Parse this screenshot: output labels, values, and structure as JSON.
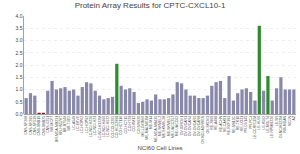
{
  "chart_data": {
    "type": "bar",
    "title": "Protein Array Results for CPTC-CXCL10-1",
    "xlabel": "NCI60 Cell Lines",
    "categories": [
      "CNS-SF268",
      "CNS-SF295",
      "CNS-SF539",
      "CNS-SNB19",
      "CNS-SNB75",
      "CNS-U251",
      "BR-MCF7",
      "BR-MDA-MB231",
      "BR-HS578T",
      "BR-BT549",
      "BR-T47D",
      "LC-A549",
      "LC-EKVX",
      "LC-HOP62",
      "LC-HOP92",
      "LC-NCI-H226",
      "LC-NCI-H23",
      "LC-NCI-H322M",
      "LC-NCI-H460",
      "LC-NCI-H522",
      "CO-COLO205",
      "CO-HCC2998",
      "CO-HCT116",
      "CO-HCT15",
      "CO-HT29",
      "CO-KM12",
      "CO-SW620",
      "ME-LOXIMVI",
      "ME-MALME3M",
      "ME-M14",
      "ME-MDA-MB435",
      "ME-SKMEL2",
      "ME-SKMEL28",
      "ME-SKMEL5",
      "ME-UACC257",
      "ME-UACC62",
      "OV-IGROV1",
      "OV-OVCAR3",
      "OV-OVCAR4",
      "OV-OVCAR5",
      "OV-OVCAR8",
      "OV-NCI-ADRRES",
      "OV-SKOV3",
      "RE-7860",
      "RE-A498",
      "RE-ACHN",
      "RE-CAKI1",
      "RE-RXF393",
      "RE-SN12C",
      "RE-TK10",
      "RE-UO31",
      "PR-DU145",
      "PR-PC3",
      "LE-CCRFCEM",
      "LE-HL60",
      "LE-K562",
      "LE-MOLT4",
      "LE-RPMI8226",
      "LE-SR",
      "GI-NCIH322M",
      "WB-MDAN",
      "NCI-N",
      "AZ"
    ],
    "values": [
      0.65,
      0.85,
      0.75,
      0.05,
      0.05,
      0.95,
      1.35,
      1.0,
      1.05,
      1.1,
      0.95,
      1.0,
      0.75,
      1.1,
      1.3,
      1.25,
      0.95,
      0.75,
      0.6,
      0.65,
      0.7,
      2.05,
      1.15,
      1.0,
      1.05,
      0.9,
      0.45,
      0.5,
      0.6,
      0.55,
      0.8,
      0.6,
      0.6,
      0.65,
      0.8,
      1.3,
      1.25,
      1.0,
      0.75,
      0.75,
      0.65,
      0.65,
      0.75,
      1.15,
      1.3,
      1.35,
      0.65,
      1.55,
      0.55,
      0.85,
      1.0,
      1.05,
      0.9,
      0.55,
      3.6,
      0.95,
      1.55,
      0.55,
      1.05,
      1.5,
      1.0,
      1.0,
      1.0
    ],
    "colors": [
      "#8888aa",
      "#8888aa",
      "#8888aa",
      "#8B1A1A",
      "#8B1A1A",
      "#8888aa",
      "#8888aa",
      "#8888aa",
      "#8888aa",
      "#8888aa",
      "#8888aa",
      "#8888aa",
      "#8888aa",
      "#8888aa",
      "#8888aa",
      "#8888aa",
      "#8888aa",
      "#8888aa",
      "#8888aa",
      "#8888aa",
      "#8888aa",
      "#2e8b2e",
      "#8888aa",
      "#8888aa",
      "#8888aa",
      "#8888aa",
      "#8888aa",
      "#8888aa",
      "#8888aa",
      "#8888aa",
      "#8888aa",
      "#8888aa",
      "#8888aa",
      "#8888aa",
      "#8888aa",
      "#8888aa",
      "#8888aa",
      "#8888aa",
      "#8888aa",
      "#8888aa",
      "#8888aa",
      "#8888aa",
      "#8888aa",
      "#8888aa",
      "#8888aa",
      "#8888aa",
      "#8888aa",
      "#8888aa",
      "#8888aa",
      "#8888aa",
      "#8888aa",
      "#8888aa",
      "#8888aa",
      "#8888aa",
      "#2e8b2e",
      "#8888aa",
      "#2e8b2e",
      "#8888aa",
      "#8888aa",
      "#8888aa",
      "#8888aa",
      "#8888aa",
      "#8888aa"
    ],
    "ylim": [
      0,
      4.0
    ],
    "yticks": [
      {
        "value": 0.0,
        "label": "0.0"
      },
      0.5,
      {
        "value": 1.0,
        "label": "1.0"
      },
      1.5,
      {
        "value": 2.0,
        "label": "2.0"
      },
      2.5,
      {
        "value": 3.0,
        "label": "3.0"
      },
      3.5,
      {
        "value": 4.0,
        "label": "4.0"
      }
    ],
    "grid": true
  }
}
